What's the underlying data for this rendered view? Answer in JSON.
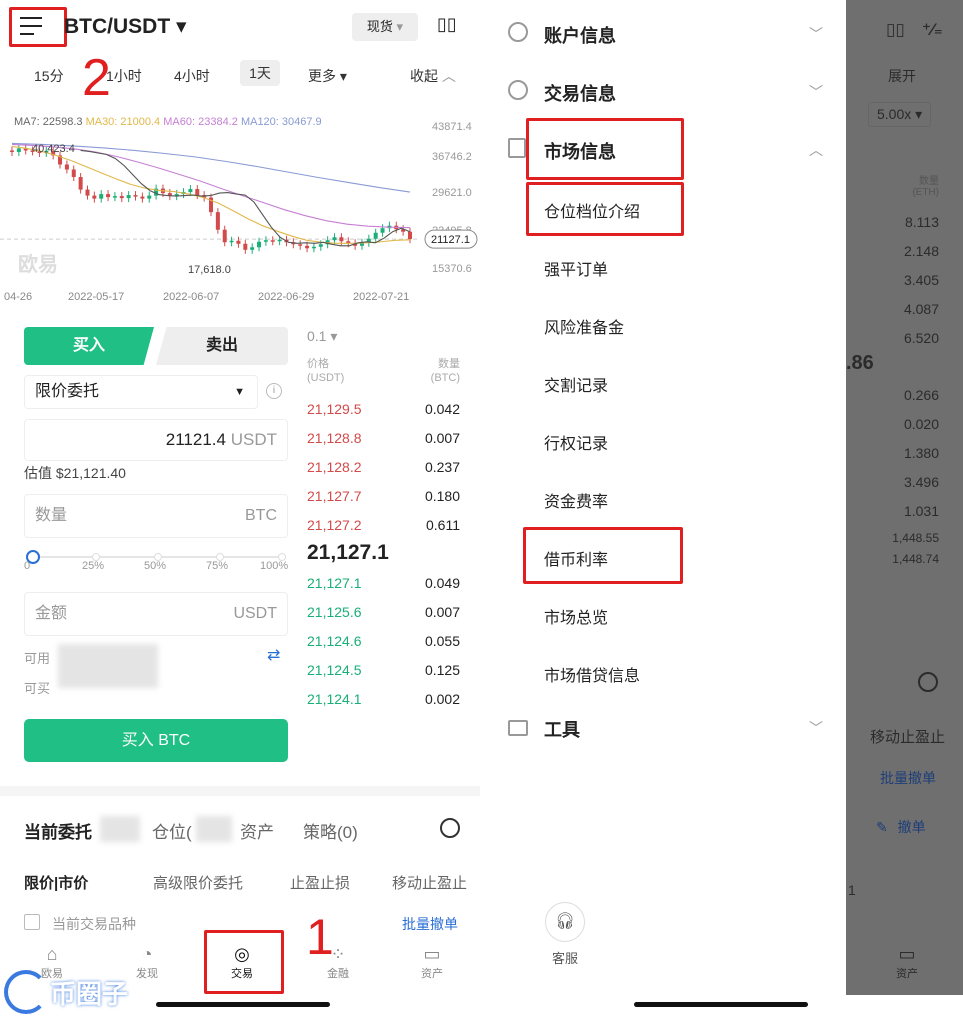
{
  "left": {
    "pair": "BTC/USDT",
    "market_type": "现货",
    "timeframes": [
      "15分",
      "1小时",
      "4小时",
      "1天",
      "更多 ▾"
    ],
    "collapse": "收起",
    "annotation_2": "2",
    "annotation_1": "1",
    "ma": {
      "ma7": "MA7: 22598.3",
      "ma30": "MA30: 21000.4",
      "ma60": "MA60: 23384.2",
      "ma120": "MA120: 30467.9"
    },
    "chart_data": {
      "type": "candlestick",
      "y_ticks": [
        "43871.4",
        "36746.2",
        "29621.0",
        "22495.8",
        "15370.6"
      ],
      "ylim": [
        15370.6,
        43871.4
      ],
      "x_ticks": [
        "04-26",
        "2022-05-17",
        "2022-06-07",
        "2022-06-29",
        "2022-07-21"
      ],
      "current_price": "21127.1",
      "high_label": "40,423.4",
      "low_label": "17,618.0",
      "watermark": "欧易",
      "closes": [
        38500,
        39200,
        38800,
        38600,
        38300,
        38700,
        37800,
        36000,
        35000,
        33500,
        31000,
        29800,
        29200,
        30100,
        29500,
        29700,
        29300,
        29900,
        29600,
        29200,
        29800,
        31200,
        30300,
        29700,
        30100,
        30500,
        31100,
        29900,
        29400,
        26500,
        23000,
        20500,
        20800,
        20200,
        19000,
        19500,
        20600,
        20900,
        20700,
        21000,
        20500,
        20100,
        19800,
        19300,
        19600,
        20100,
        20900,
        21500,
        20700,
        20300,
        19800,
        20400,
        21200,
        22400,
        23300,
        23800,
        23100,
        22600,
        21127
      ],
      "ma7": [
        38800,
        38600,
        38300,
        38000,
        37200,
        35800,
        34000,
        32200,
        30800,
        30000,
        29800,
        29700,
        29800,
        29900,
        29700,
        29800,
        30300,
        30400,
        30100,
        29900,
        28500,
        26000,
        23500,
        21500,
        20500,
        20300,
        20400,
        20300,
        20500,
        20100,
        19800,
        19800,
        20400,
        20600,
        20400,
        21300,
        22600,
        23300,
        22600
      ],
      "ma30": [
        39600,
        39200,
        38600,
        37800,
        36800,
        35600,
        34400,
        33200,
        32100,
        31300,
        30800,
        30600,
        30100,
        29400,
        28300,
        26800,
        25200,
        23800,
        22700,
        21700,
        20900,
        20500,
        20300,
        20300,
        20400,
        20600,
        20900,
        21000
      ],
      "ma60": [
        40000,
        39800,
        39500,
        39100,
        38500,
        37600,
        36500,
        35300,
        34000,
        32700,
        31200,
        29800,
        28400,
        27000,
        25800,
        24800,
        24100,
        23700,
        23500,
        23400
      ],
      "ma120": [
        40200,
        40000,
        39700,
        39300,
        38800,
        38200,
        37500,
        36600,
        35600,
        34500,
        33400,
        32400,
        31400,
        30500
      ]
    },
    "order": {
      "buy_tab": "买入",
      "sell_tab": "卖出",
      "order_type": "限价委托",
      "price_value": "21121.4",
      "price_unit": "USDT",
      "estimate": "估值 $21,121.40",
      "qty_placeholder": "数量",
      "qty_unit": "BTC",
      "slider_labels": [
        "0",
        "25%",
        "50%",
        "75%",
        "100%"
      ],
      "slider_value": 0,
      "amount_placeholder": "金额",
      "amount_unit": "USDT",
      "available": "可用",
      "can_buy": "可买",
      "submit": "买入 BTC"
    },
    "book": {
      "depth": "0.1 ▾",
      "price_header": "价格",
      "price_unit": "(USDT)",
      "qty_header": "数量",
      "qty_unit": "(BTC)",
      "asks": [
        [
          "21,129.5",
          "0.042"
        ],
        [
          "21,128.8",
          "0.007"
        ],
        [
          "21,128.2",
          "0.237"
        ],
        [
          "21,127.7",
          "0.180"
        ],
        [
          "21,127.2",
          "0.611"
        ]
      ],
      "last": "21,127.1",
      "bids": [
        [
          "21,127.1",
          "0.049"
        ],
        [
          "21,125.6",
          "0.007"
        ],
        [
          "21,124.6",
          "0.055"
        ],
        [
          "21,124.5",
          "0.125"
        ],
        [
          "21,124.1",
          "0.002"
        ]
      ]
    },
    "orders_tabs": [
      "当前委托",
      "仓位(",
      "资产",
      "策略(0)"
    ],
    "sub_tabs": [
      "限价|市价",
      "高级限价委托",
      "止盈止损",
      "移动止盈止"
    ],
    "current_pair_only": "当前交易品种",
    "batch_cancel": "批量撤单",
    "bottom_nav": [
      "欧易",
      "发现",
      "交易",
      "金融",
      "资产"
    ],
    "watermark": "币圈子"
  },
  "right": {
    "sections": [
      {
        "label": "账户信息",
        "expanded": false
      },
      {
        "label": "交易信息",
        "expanded": false
      },
      {
        "label": "市场信息",
        "expanded": true
      },
      {
        "label": "工具",
        "expanded": false
      }
    ],
    "market_items": [
      "仓位档位介绍",
      "强平订单",
      "风险准备金",
      "交割记录",
      "行权记录",
      "资金费率",
      "借币利率",
      "市场总览",
      "市场借贷信息"
    ],
    "support": "客服",
    "bg": {
      "expand": "展开",
      "leverage": "5.00x ▾",
      "qty_header": "数量",
      "qty_unit": "(ETH)",
      "asks": [
        "8.113",
        "2.148",
        "3.405",
        "4.087",
        "6.520"
      ],
      "last_fragment": ".86",
      "bids": [
        "0.266",
        "0.020",
        "1.380",
        "3.496",
        "1.031"
      ],
      "extra": [
        "1,448.55",
        "1,448.74"
      ],
      "trailing": "移动止盈止",
      "batch_cancel": "批量撤单",
      "cancel": "撤单",
      "one": "1",
      "assets": "资产"
    }
  },
  "colors": {
    "green": "#1aae78",
    "red": "#d24a4a",
    "annotation": "#e02020",
    "link": "#2a6fd6"
  }
}
